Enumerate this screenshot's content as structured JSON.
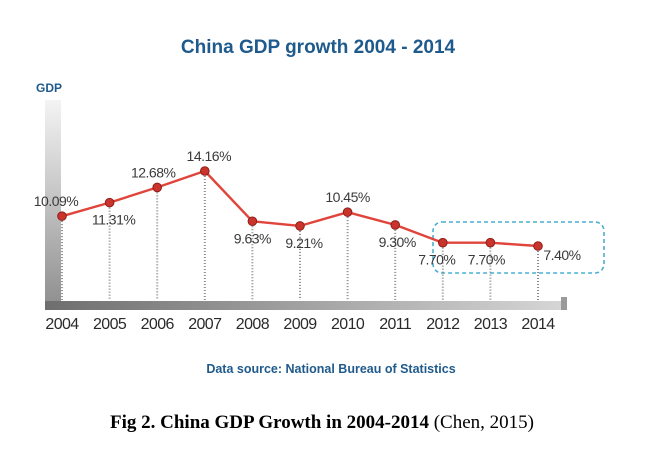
{
  "chart_data": {
    "type": "line",
    "title": "China GDP growth 2004 - 2014",
    "ylabel": "GDP",
    "xlabel": "",
    "categories": [
      "2004",
      "2005",
      "2006",
      "2007",
      "2008",
      "2009",
      "2010",
      "2011",
      "2012",
      "2013",
      "2014"
    ],
    "values": [
      10.09,
      11.31,
      12.68,
      14.16,
      9.63,
      9.21,
      10.45,
      9.3,
      7.7,
      7.7,
      7.4
    ],
    "data_labels": [
      "10.09%",
      "11.31%",
      "12.68%",
      "14.16%",
      "9.63%",
      "9.21%",
      "10.45%",
      "9.30%",
      "7.70%",
      "7.70%",
      "7.40%"
    ],
    "highlighted_categories": [
      "2012",
      "2013",
      "2014"
    ],
    "grid": false,
    "line_color": "#e0443a",
    "marker_color": "#c9342c",
    "highlight_color": "#4aaed0",
    "title_color": "#1f5a8c"
  },
  "source_note": "Data source: National Bureau of Statistics",
  "caption": {
    "bold": "Fig 2. China GDP Growth in 2004-2014",
    "normal": " (Chen, 2015)"
  }
}
